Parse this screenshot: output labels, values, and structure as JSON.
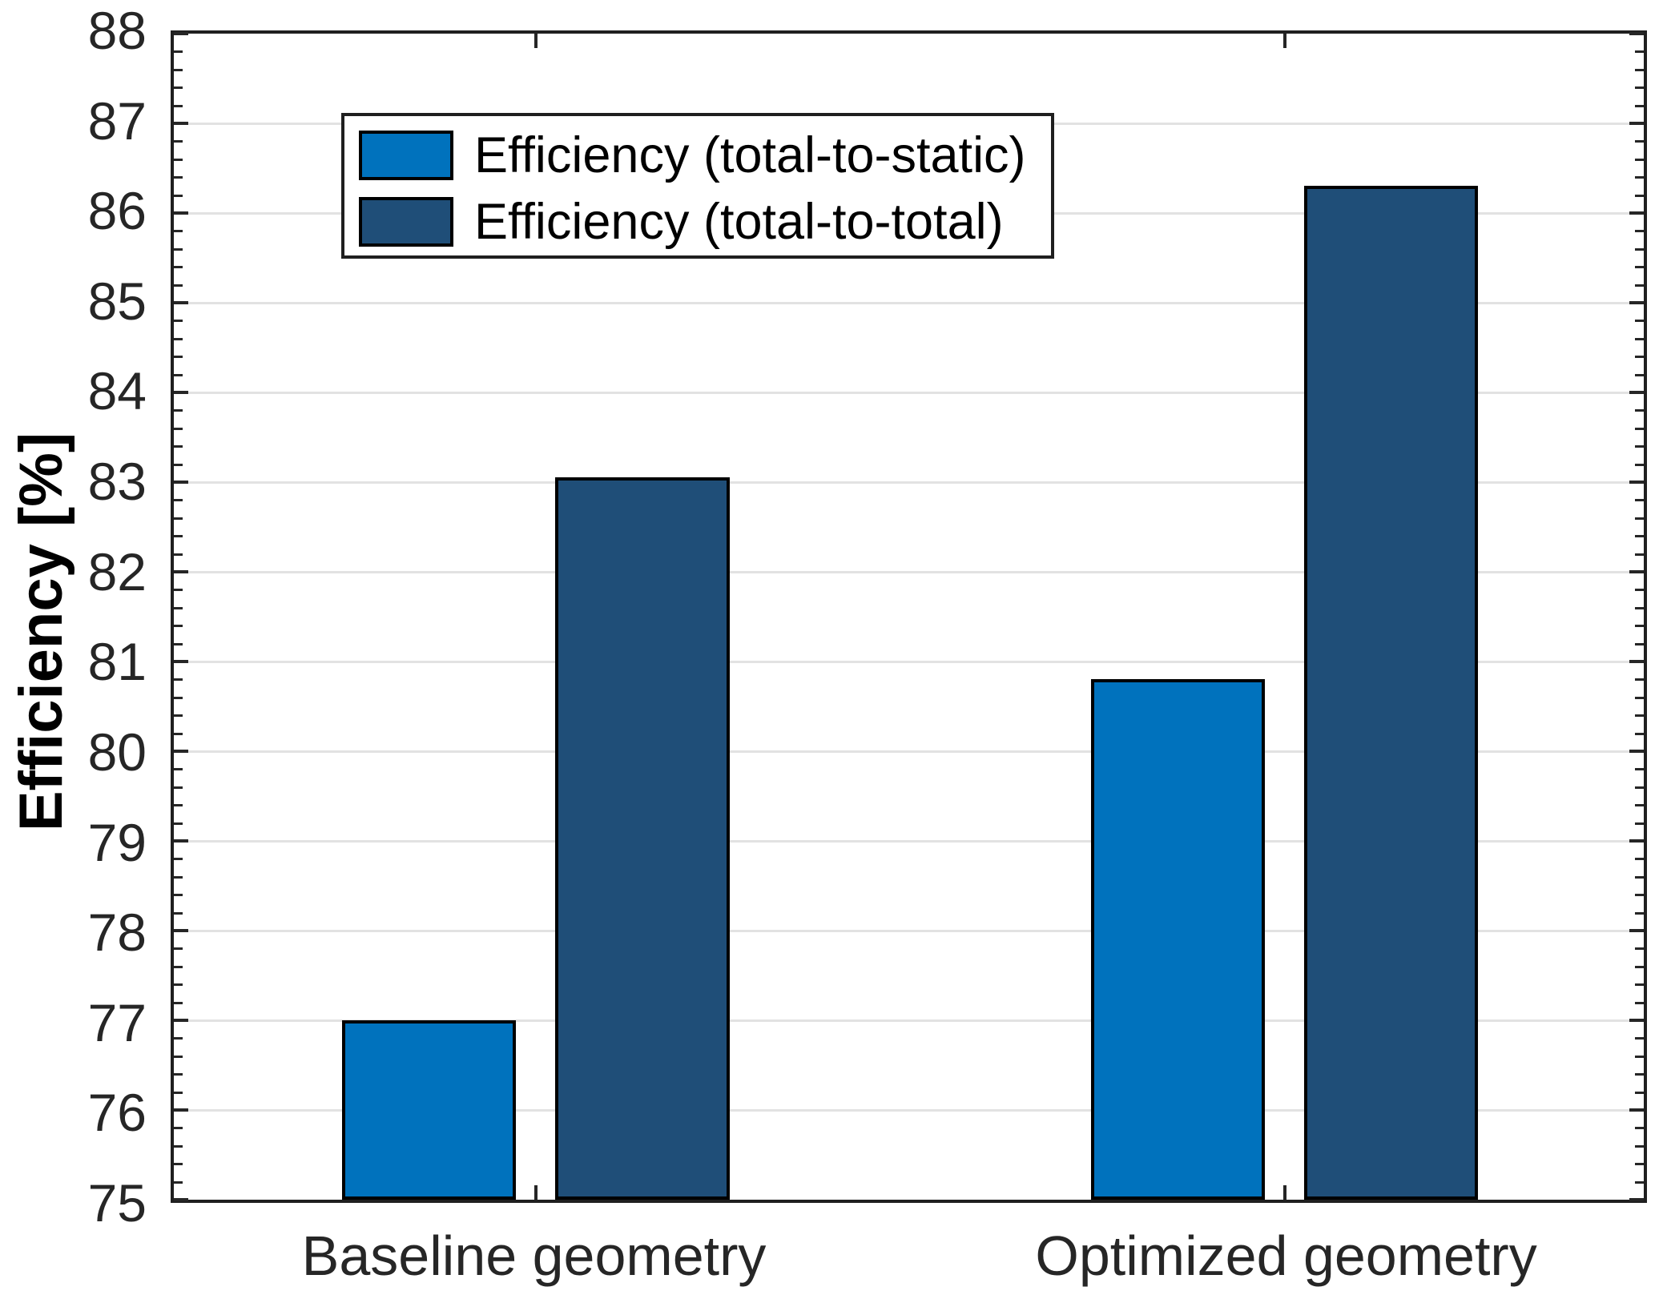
{
  "chart_data": {
    "type": "bar",
    "title": "",
    "xlabel": "",
    "ylabel": "Efficiency [%]",
    "categories": [
      "Baseline geometry",
      "Optimized geometry"
    ],
    "series": [
      {
        "name": "Efficiency (total-to-static)",
        "color": "#0072BD",
        "values": [
          77.0,
          80.8
        ]
      },
      {
        "name": "Efficiency (total-to-total)",
        "color": "#1F4E78",
        "values": [
          83.05,
          86.3
        ]
      }
    ],
    "ylim": [
      75,
      88
    ],
    "ytick_step": 1,
    "ytick_labels": [
      "75",
      "76",
      "77",
      "78",
      "79",
      "80",
      "81",
      "82",
      "83",
      "84",
      "85",
      "86",
      "87",
      "88"
    ],
    "y_minor_tick_step": 0.2,
    "grid": "horizontal-major",
    "grid_color": "#E2E2E2",
    "axis_color": "#1F1F1F",
    "tick_label_color": "#262626",
    "bar_edge_color": "#000000",
    "legend_position": "top-left-inside",
    "legend_entries": [
      "Efficiency (total-to-static)",
      "Efficiency (total-to-total)"
    ]
  }
}
